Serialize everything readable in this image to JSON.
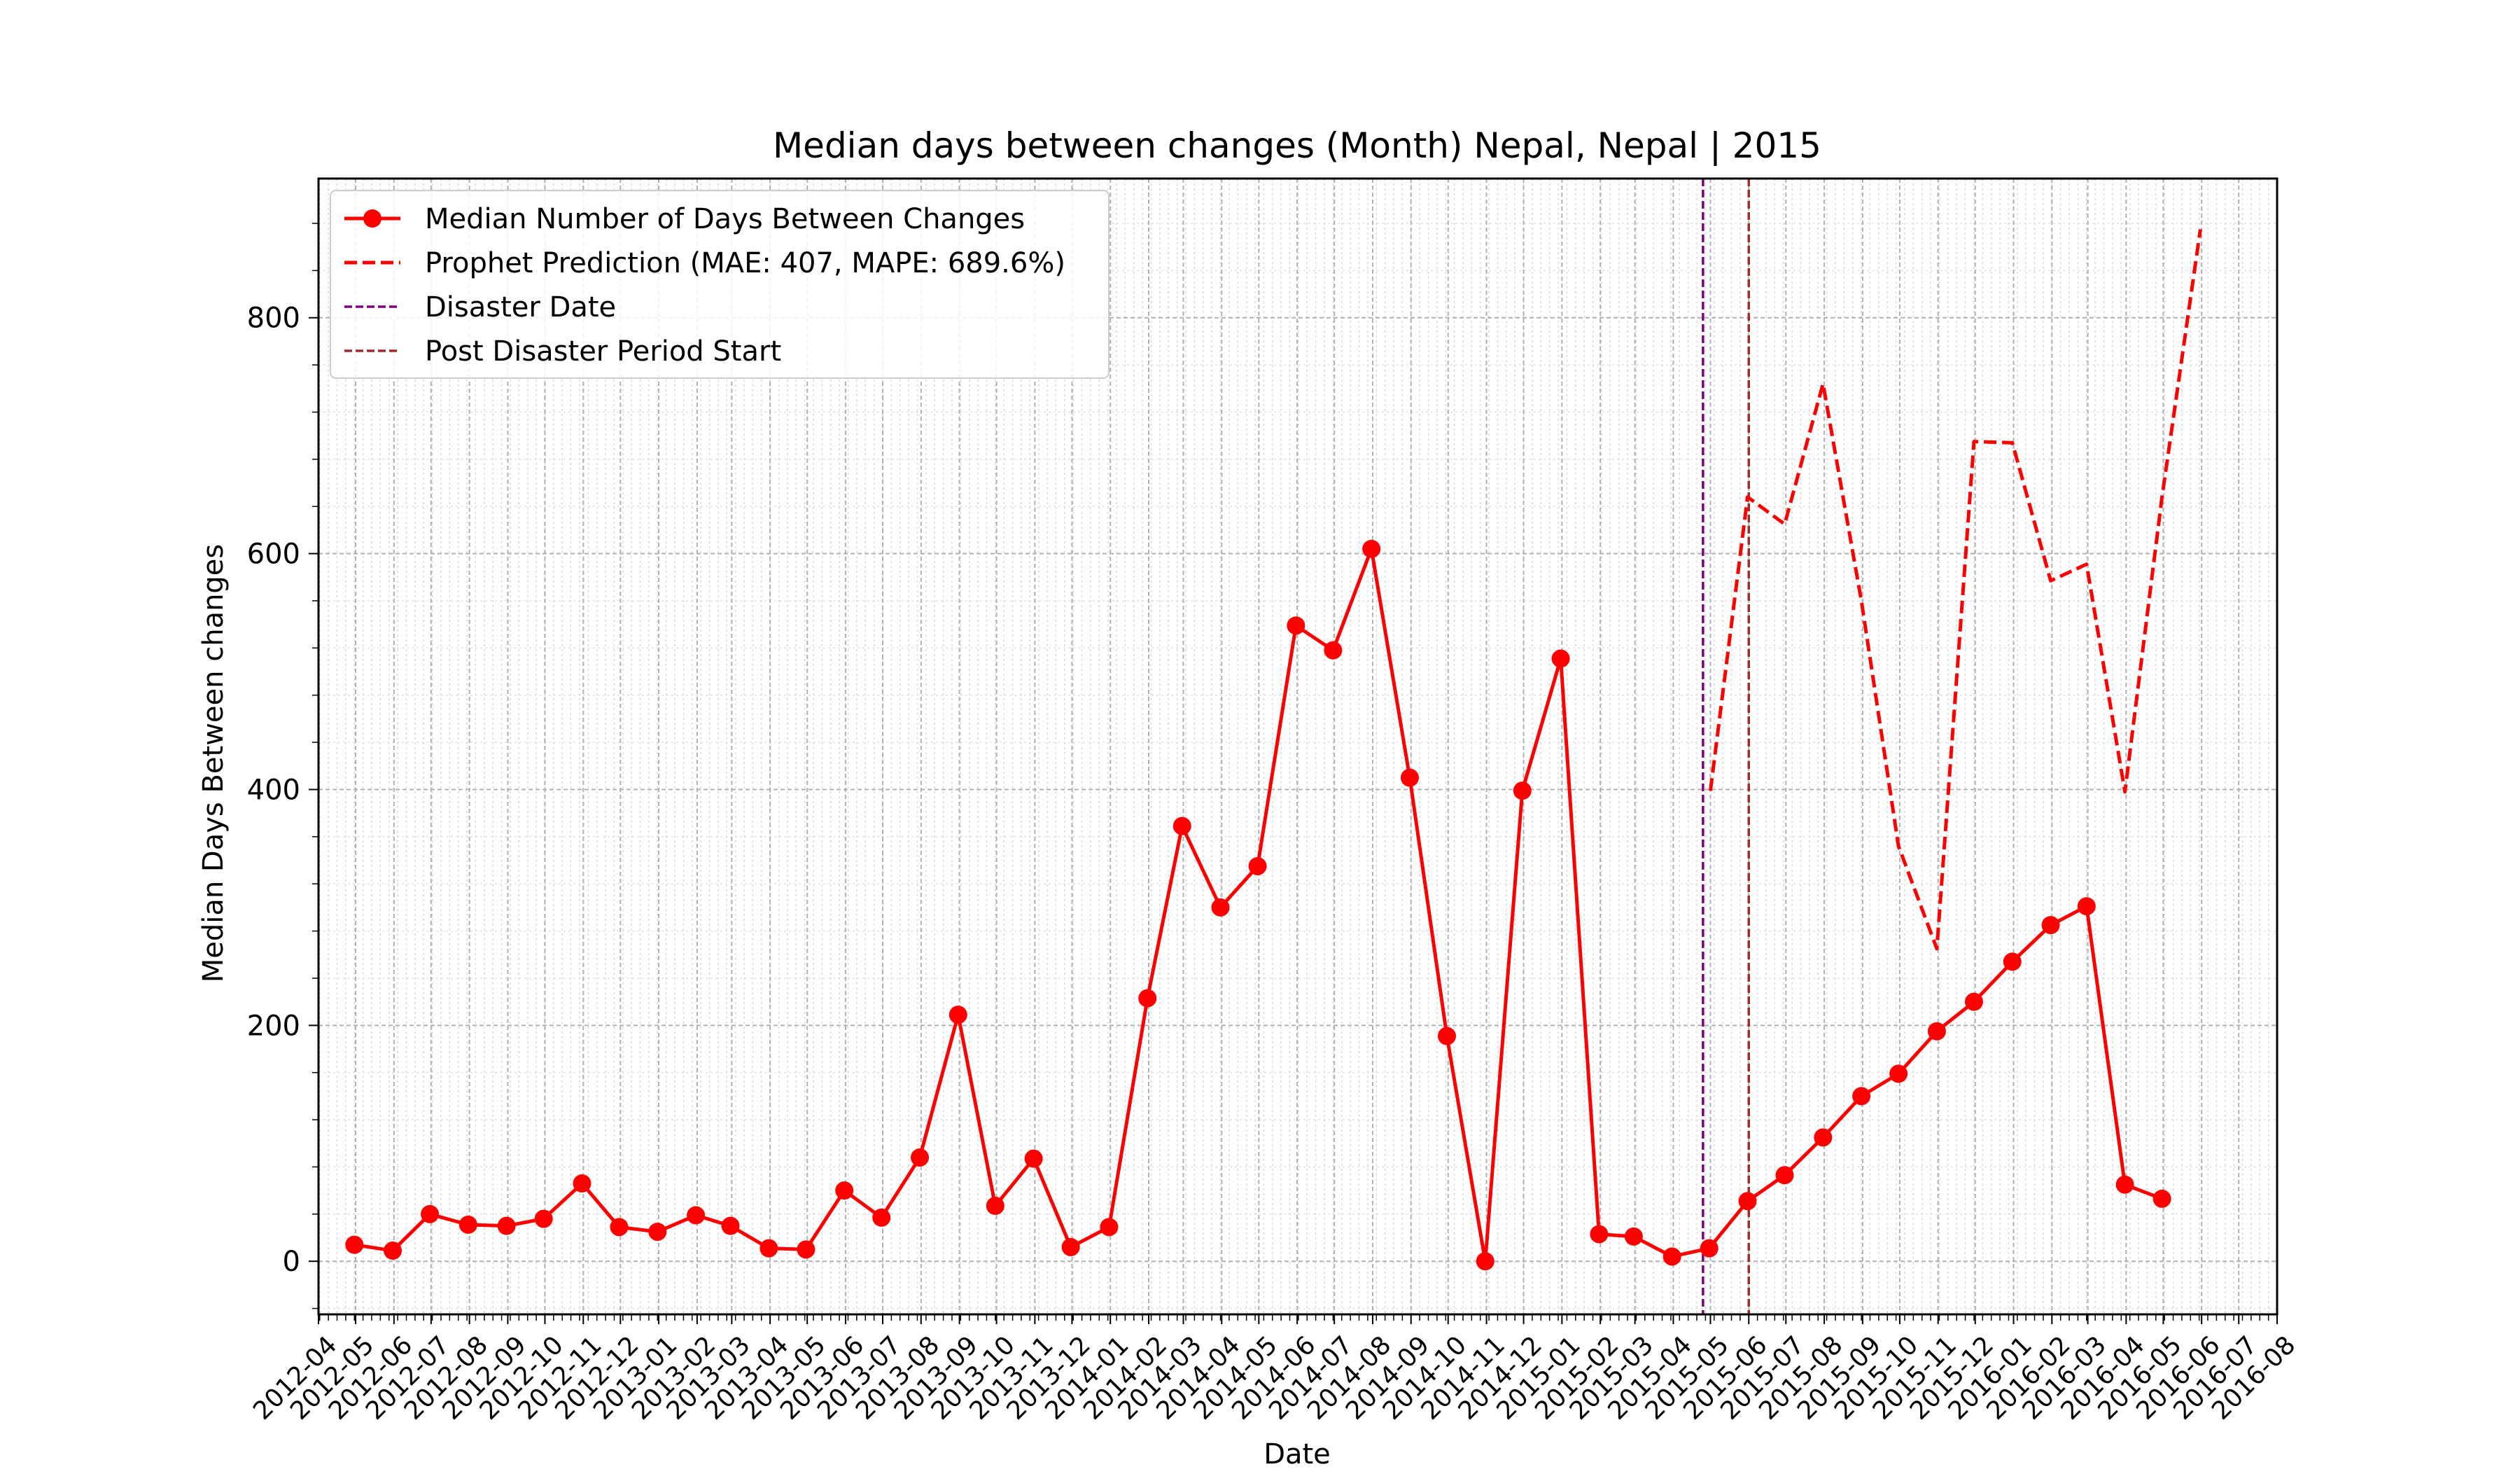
{
  "chart_data": {
    "type": "line",
    "title": "Median days between changes (Month) Nepal, Nepal | 2015",
    "xlabel": "Date",
    "ylabel": "Median Days Between changes",
    "xlim": [
      "2012-04-01",
      "2016-08-01"
    ],
    "ylim": [
      -45,
      918
    ],
    "y_ticks": [
      0,
      200,
      400,
      600,
      800
    ],
    "x_tick_labels": [
      "2012-04",
      "2012-05",
      "2012-06",
      "2012-07",
      "2012-08",
      "2012-09",
      "2012-10",
      "2012-11",
      "2012-12",
      "2013-01",
      "2013-02",
      "2013-03",
      "2013-04",
      "2013-05",
      "2013-06",
      "2013-07",
      "2013-08",
      "2013-09",
      "2013-10",
      "2013-11",
      "2013-12",
      "2014-01",
      "2014-02",
      "2014-03",
      "2014-04",
      "2014-05",
      "2014-06",
      "2014-07",
      "2014-08",
      "2014-09",
      "2014-10",
      "2014-11",
      "2014-12",
      "2015-01",
      "2015-02",
      "2015-03",
      "2015-04",
      "2015-05",
      "2015-06",
      "2015-07",
      "2015-08",
      "2015-09",
      "2015-10",
      "2015-11",
      "2015-12",
      "2016-01",
      "2016-02",
      "2016-03",
      "2016-04",
      "2016-05",
      "2016-06",
      "2016-07",
      "2016-08"
    ],
    "grid": true,
    "legend_position": "top-left",
    "series": [
      {
        "name": "Median Number of Days Between Changes",
        "color": "#ff0000",
        "style": "solid-marker",
        "x": [
          "2012-04-30",
          "2012-05-31",
          "2012-06-30",
          "2012-07-31",
          "2012-08-31",
          "2012-09-30",
          "2012-10-31",
          "2012-11-30",
          "2012-12-31",
          "2013-01-31",
          "2013-02-28",
          "2013-03-31",
          "2013-04-30",
          "2013-05-31",
          "2013-06-30",
          "2013-07-31",
          "2013-08-31",
          "2013-09-30",
          "2013-10-31",
          "2013-11-30",
          "2013-12-31",
          "2014-01-31",
          "2014-02-28",
          "2014-03-31",
          "2014-04-30",
          "2014-05-31",
          "2014-06-30",
          "2014-07-31",
          "2014-08-31",
          "2014-09-30",
          "2014-10-31",
          "2014-11-30",
          "2014-12-31",
          "2015-01-31",
          "2015-02-28",
          "2015-03-31",
          "2015-04-30",
          "2015-05-31",
          "2015-06-30",
          "2015-07-31",
          "2015-08-31",
          "2015-09-30",
          "2015-10-31",
          "2015-11-30",
          "2015-12-31",
          "2016-01-31",
          "2016-02-29",
          "2016-03-31",
          "2016-04-30"
        ],
        "values": [
          14,
          9,
          40,
          31,
          30,
          36,
          66,
          29,
          25,
          39,
          30,
          11,
          10,
          60,
          37,
          88,
          209,
          47,
          87,
          12,
          29,
          223,
          369,
          300,
          335,
          539,
          518,
          604,
          410,
          191,
          0,
          399,
          511,
          23,
          21,
          4,
          11,
          51,
          73,
          105,
          140,
          159,
          195,
          220,
          254,
          285,
          301,
          65,
          53
        ]
      },
      {
        "name": "Prophet Prediction (MAE: 407, MAPE: 689.6%)",
        "color": "#ff0000",
        "style": "dashed",
        "x": [
          "2015-05-01",
          "2015-05-31",
          "2015-06-30",
          "2015-07-31",
          "2015-08-31",
          "2015-09-30",
          "2015-10-31",
          "2015-11-30",
          "2015-12-31",
          "2016-01-31",
          "2016-02-29",
          "2016-03-31",
          "2016-04-30",
          "2016-05-31"
        ],
        "values": [
          399,
          648,
          625,
          744,
          560,
          352,
          265,
          695,
          694,
          577,
          591,
          398,
          648,
          875
        ]
      }
    ],
    "vertical_lines": [
      {
        "name": "Disaster Date",
        "x": "2015-04-25",
        "color": "#800080"
      },
      {
        "name": "Post Disaster Period Start",
        "x": "2015-06-01",
        "color": "#a52a2a"
      }
    ]
  }
}
